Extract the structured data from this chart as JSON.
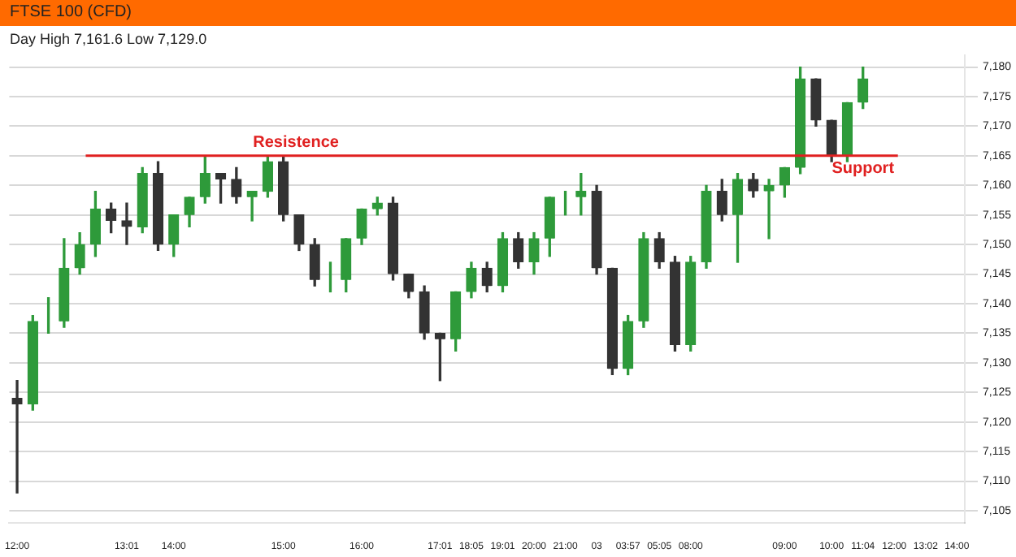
{
  "chart_data": {
    "type": "candlestick",
    "title": "FTSE 100 (CFD)",
    "annotations": [
      "Day High 7,161.6 Low 7,129.0",
      {
        "text": "Support",
        "x": "11:04",
        "y": 7165
      }
    ],
    "categories": [
      "12:00",
      null,
      null,
      null,
      null,
      null,
      null,
      "13:01",
      null,
      null,
      "14:00",
      null,
      null,
      null,
      null,
      null,
      null,
      "15:00",
      null,
      null,
      null,
      null,
      "16:00",
      null,
      null,
      null,
      null,
      "17:01",
      null,
      "18:05",
      null,
      "19:01",
      null,
      "20:00",
      null,
      "21:00",
      null,
      "03",
      null,
      "03:57",
      null,
      "05:05",
      null,
      "08:00",
      null,
      null,
      null,
      null,
      null,
      "09:00",
      null,
      null,
      "10:00",
      null,
      "11:04",
      null,
      "12:00",
      null,
      "13:02",
      null,
      "14:00"
    ],
    "ohlc": [
      [
        7124,
        7127,
        7108,
        7123
      ],
      [
        7123,
        7138,
        7122,
        7137
      ],
      [
        7137,
        7141,
        7135,
        7137
      ],
      [
        7137,
        7151,
        7136,
        7146
      ],
      [
        7146,
        7152,
        7145,
        7150
      ],
      [
        7150,
        7159,
        7148,
        7156
      ],
      [
        7156,
        7157,
        7152,
        7154
      ],
      [
        7154,
        7157,
        7150,
        7153
      ],
      [
        7153,
        7163,
        7152,
        7162
      ],
      [
        7162,
        7164,
        7149,
        7150
      ],
      [
        7150,
        7155,
        7148,
        7155
      ],
      [
        7155,
        7158,
        7153,
        7158
      ],
      [
        7158,
        7165,
        7157,
        7162
      ],
      [
        7162,
        7162,
        7157,
        7161
      ],
      [
        7161,
        7163,
        7157,
        7158
      ],
      [
        7158,
        7159,
        7154,
        7159
      ],
      [
        7159,
        7165,
        7158,
        7164
      ],
      [
        7164,
        7165,
        7154,
        7155
      ],
      [
        7155,
        7155,
        7149,
        7150
      ],
      [
        7150,
        7151,
        7143,
        7144
      ],
      [
        7144,
        7147,
        7142,
        7144
      ],
      [
        7144,
        7151,
        7142,
        7151
      ],
      [
        7151,
        7156,
        7150,
        7156
      ],
      [
        7156,
        7158,
        7155,
        7157
      ],
      [
        7157,
        7158,
        7144,
        7145
      ],
      [
        7145,
        7145,
        7141,
        7142
      ],
      [
        7142,
        7143,
        7134,
        7135
      ],
      [
        7135,
        7135,
        7127,
        7134
      ],
      [
        7134,
        7142,
        7132,
        7142
      ],
      [
        7142,
        7147,
        7141,
        7146
      ],
      [
        7146,
        7147,
        7142,
        7143
      ],
      [
        7143,
        7152,
        7142,
        7151
      ],
      [
        7151,
        7152,
        7146,
        7147
      ],
      [
        7147,
        7152,
        7145,
        7151
      ],
      [
        7151,
        7158,
        7148,
        7158
      ],
      [
        7158,
        7159,
        7155,
        7158
      ],
      [
        7158,
        7162,
        7155,
        7159
      ],
      [
        7159,
        7160,
        7145,
        7146
      ],
      [
        7146,
        7146,
        7128,
        7129
      ],
      [
        7129,
        7138,
        7128,
        7137
      ],
      [
        7137,
        7152,
        7136,
        7151
      ],
      [
        7151,
        7152,
        7146,
        7147
      ],
      [
        7147,
        7148,
        7132,
        7133
      ],
      [
        7133,
        7148,
        7132,
        7147
      ],
      [
        7147,
        7160,
        7146,
        7159
      ],
      [
        7159,
        7161,
        7154,
        7155
      ],
      [
        7155,
        7162,
        7147,
        7161
      ],
      [
        7161,
        7162,
        7158,
        7159
      ],
      [
        7159,
        7161,
        7151,
        7160
      ],
      [
        7160,
        7163,
        7158,
        7163
      ],
      [
        7163,
        7180,
        7162,
        7178
      ],
      [
        7178,
        7178,
        7170,
        7171
      ],
      [
        7171,
        7171,
        7164,
        7165
      ],
      [
        7165,
        7174,
        7164,
        7174
      ],
      [
        7174,
        7180,
        7173,
        7178
      ],
      null,
      null,
      null,
      null,
      null,
      null
    ],
    "ylim": [
      7103,
      7182
    ],
    "yticks": [
      {
        "value": 7180,
        "label": "7,180"
      },
      {
        "value": 7175,
        "label": "7,175"
      },
      {
        "value": 7170,
        "label": "7,170"
      },
      {
        "value": 7165,
        "label": "7,165"
      },
      {
        "value": 7160,
        "label": "7,160"
      },
      {
        "value": 7155,
        "label": "7,155"
      },
      {
        "value": 7150,
        "label": "7,150"
      },
      {
        "value": 7145,
        "label": "7,145"
      },
      {
        "value": 7140,
        "label": "7,140"
      },
      {
        "value": 7135,
        "label": "7,135"
      },
      {
        "value": 7130,
        "label": "7,130"
      },
      {
        "value": 7125,
        "label": "7,125"
      },
      {
        "value": 7120,
        "label": "7,120"
      },
      {
        "value": 7115,
        "label": "7,115"
      },
      {
        "value": 7110,
        "label": "7,110"
      },
      {
        "value": 7105,
        "label": "7,105"
      }
    ],
    "grid": "y",
    "ref_lines": [
      {
        "axis": "y",
        "value": 7165,
        "label": "Resistence",
        "color": "#e02020"
      }
    ]
  }
}
